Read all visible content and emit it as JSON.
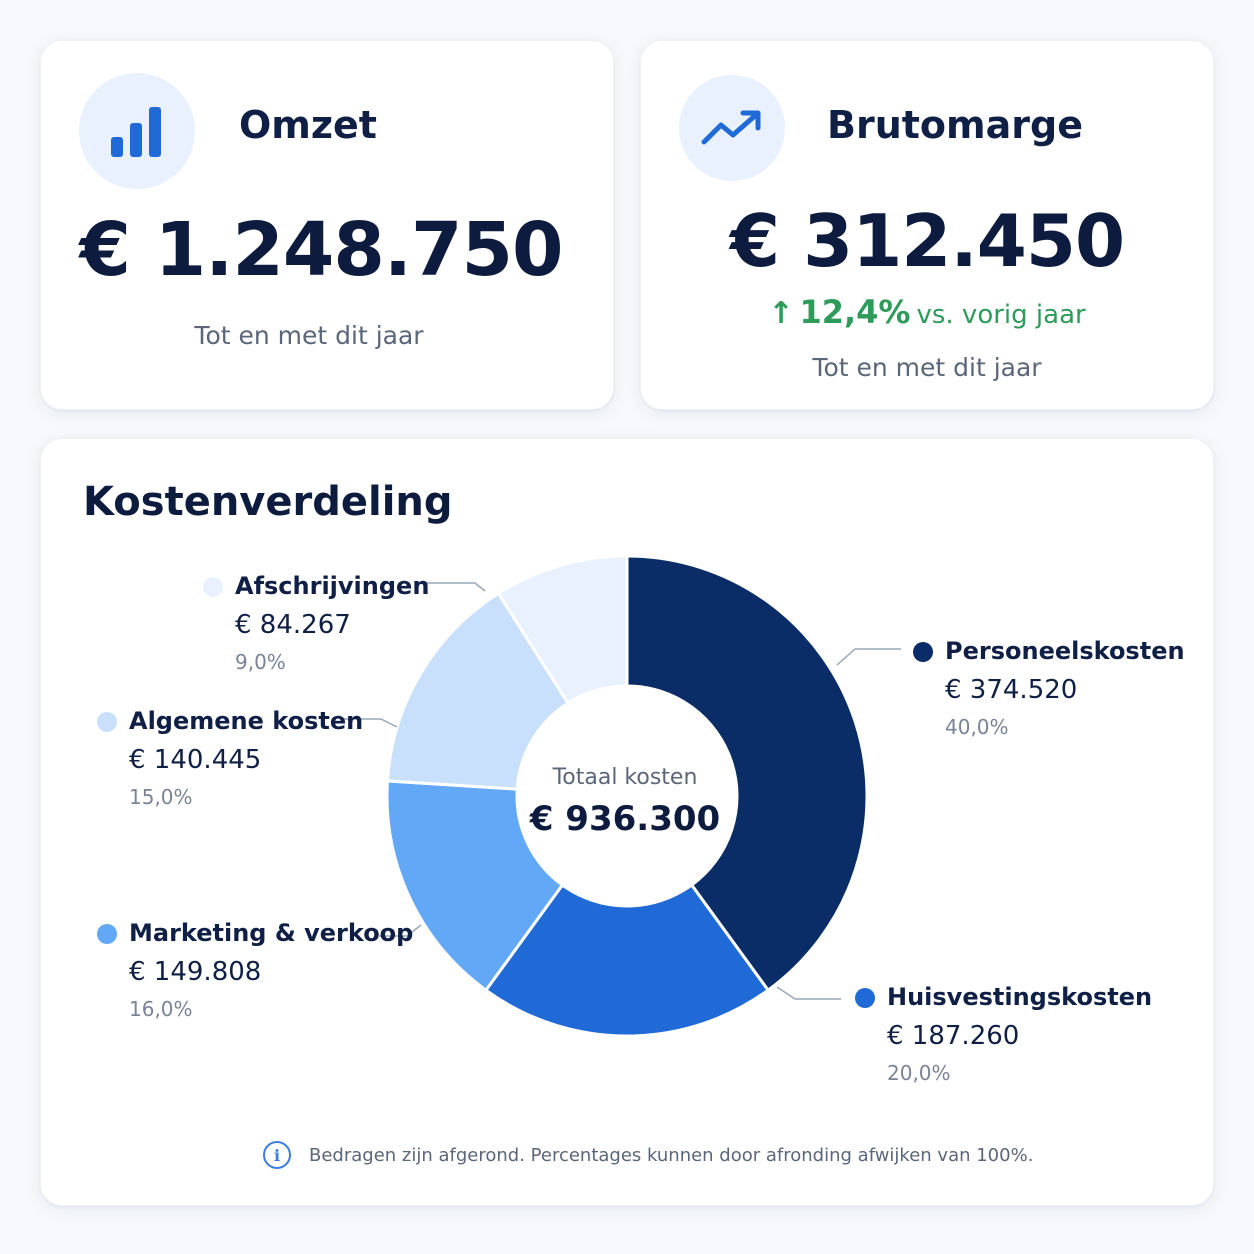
{
  "omzet": {
    "title": "Omzet",
    "icon": "bar-chart-icon",
    "value": "€ 1.248.750",
    "subtitle": "Tot en met dit jaar"
  },
  "brutomarge": {
    "title": "Brutomarge",
    "icon": "trend-up-icon",
    "value": "€ 312.450",
    "growth_arrow": "↑",
    "growth_pct": "12,4%",
    "growth_label": "vs. vorig jaar",
    "subtitle": "Tot en met dit jaar"
  },
  "kostenverdeling": {
    "title": "Kostenverdeling",
    "center_label": "Totaal kosten",
    "center_value": "€ 936.300",
    "footnote": "Bedragen zijn afgerond. Percentages kunnen door afronding afwijken van 100%.",
    "info_icon": "info-icon"
  },
  "colors": {
    "accent": "#1f6ad6",
    "positive": "#2e9b5b",
    "navy": "#0d1b3e"
  },
  "chart_data": {
    "type": "pie",
    "donut": true,
    "title": "Kostenverdeling",
    "total": 936300,
    "slices": [
      {
        "name": "Personeelskosten",
        "value": 374520,
        "value_label": "€ 374.520",
        "pct_label": "40,0%",
        "pct": 40.0,
        "color": "#0b2d67"
      },
      {
        "name": "Huisvestingskosten",
        "value": 187260,
        "value_label": "€ 187.260",
        "pct_label": "20,0%",
        "pct": 20.0,
        "color": "#1f6ad6"
      },
      {
        "name": "Marketing & verkoop",
        "value": 149808,
        "value_label": "€ 149.808",
        "pct_label": "16,0%",
        "pct": 16.0,
        "color": "#63a7f7"
      },
      {
        "name": "Algemene kosten",
        "value": 140445,
        "value_label": "€ 140.445",
        "pct_label": "15,0%",
        "pct": 15.0,
        "color": "#c9e0fc"
      },
      {
        "name": "Afschrijvingen",
        "value": 84267,
        "value_label": "€ 84.267",
        "pct_label": "9,0%",
        "pct": 9.0,
        "color": "#e8f1fd"
      }
    ]
  }
}
